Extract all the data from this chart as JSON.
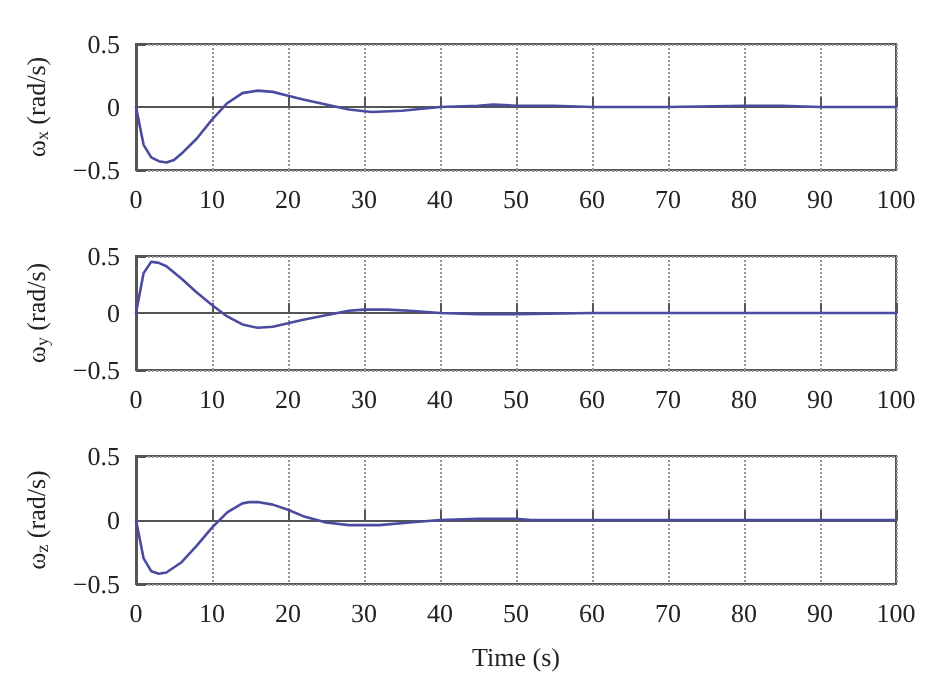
{
  "chart_data": [
    {
      "type": "line",
      "ylabel": "ω$_{x}$ (rad/s)",
      "x": [
        0,
        1,
        2,
        3,
        4,
        5,
        6,
        8,
        10,
        12,
        14,
        16,
        18,
        20,
        22,
        25,
        28,
        31,
        35,
        40,
        45,
        47,
        50,
        55,
        60,
        70,
        80,
        85,
        90,
        100
      ],
      "series": [
        {
          "color": "#4b4ba0",
          "values": [
            0,
            -0.3,
            -0.4,
            -0.43,
            -0.44,
            -0.42,
            -0.37,
            -0.25,
            -0.1,
            0.03,
            0.11,
            0.13,
            0.12,
            0.09,
            0.06,
            0.02,
            -0.02,
            -0.04,
            -0.03,
            0,
            0.01,
            0.02,
            0.01,
            0.01,
            0,
            0,
            0.01,
            0.01,
            0,
            0
          ]
        }
      ],
      "xlim": [
        0,
        100
      ],
      "xticks": [
        0,
        10,
        20,
        30,
        40,
        50,
        60,
        70,
        80,
        90,
        100
      ],
      "ylim": [
        -0.5,
        0.5
      ],
      "yticks": [
        -0.5,
        0,
        0.5
      ],
      "grid": true,
      "line_style": "solid"
    },
    {
      "type": "line",
      "ylabel": "ω$_{y}$ (rad/s)",
      "x": [
        0,
        1,
        2,
        3,
        4,
        6,
        8,
        10,
        12,
        14,
        16,
        18,
        20,
        22,
        25,
        28,
        30,
        33,
        36,
        40,
        45,
        50,
        60,
        100
      ],
      "series": [
        {
          "color": "#4b4ba0",
          "values": [
            0,
            0.35,
            0.45,
            0.44,
            0.41,
            0.3,
            0.18,
            0.07,
            -0.03,
            -0.1,
            -0.13,
            -0.12,
            -0.09,
            -0.06,
            -0.02,
            0.02,
            0.03,
            0.03,
            0.02,
            0,
            -0.01,
            -0.01,
            0,
            0
          ]
        }
      ],
      "xlim": [
        0,
        100
      ],
      "xticks": [
        0,
        10,
        20,
        30,
        40,
        50,
        60,
        70,
        80,
        90,
        100
      ],
      "ylim": [
        -0.5,
        0.5
      ],
      "yticks": [
        -0.5,
        0,
        0.5
      ],
      "grid": true,
      "line_style": "solid"
    },
    {
      "type": "line",
      "xlabel": "Time (s)",
      "ylabel": "ω$_{z}$ (rad/s)",
      "x": [
        0,
        1,
        2,
        3,
        4,
        6,
        8,
        10,
        12,
        14,
        15,
        16,
        18,
        20,
        22,
        25,
        28,
        32,
        36,
        40,
        45,
        50,
        52,
        100
      ],
      "series": [
        {
          "color": "#4b4ba0",
          "values": [
            0,
            -0.3,
            -0.4,
            -0.42,
            -0.41,
            -0.33,
            -0.2,
            -0.06,
            0.06,
            0.13,
            0.14,
            0.14,
            0.12,
            0.08,
            0.03,
            -0.02,
            -0.04,
            -0.04,
            -0.02,
            0,
            0.01,
            0.01,
            0,
            0
          ]
        }
      ],
      "xlim": [
        0,
        100
      ],
      "xticks": [
        0,
        10,
        20,
        30,
        40,
        50,
        60,
        70,
        80,
        90,
        100
      ],
      "ylim": [
        -0.5,
        0.5
      ],
      "yticks": [
        -0.5,
        0,
        0.5
      ],
      "grid": true,
      "line_style": "solid"
    }
  ]
}
